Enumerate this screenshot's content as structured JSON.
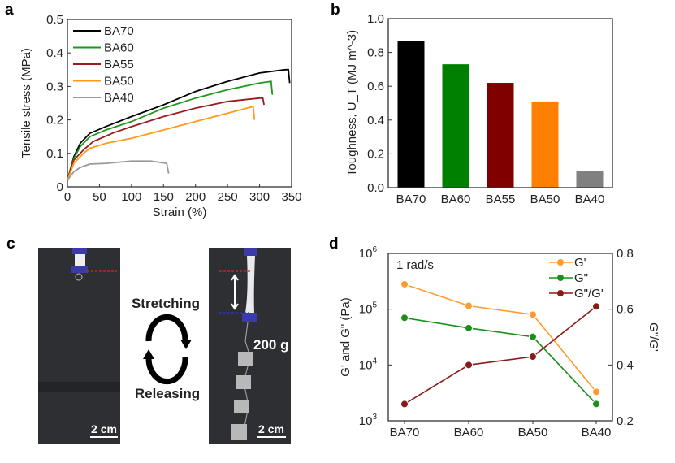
{
  "panel_labels": [
    "a",
    "b",
    "c",
    "d"
  ],
  "chart_data": [
    {
      "type": "line",
      "panel": "a",
      "xlabel": "Strain (%)",
      "ylabel": "Tensile stress (MPa)",
      "xlim": [
        0,
        350
      ],
      "ylim": [
        0,
        0.5
      ],
      "xticks": [
        "0",
        "50",
        "100",
        "150",
        "200",
        "250",
        "300",
        "350"
      ],
      "yticks": [
        "0",
        "0.1",
        "0.2",
        "0.3",
        "0.4",
        "0.5"
      ],
      "legend": "top-left",
      "series": [
        {
          "name": "BA70",
          "color": "#000000",
          "points": [
            [
              0,
              0.02
            ],
            [
              10,
              0.09
            ],
            [
              20,
              0.13
            ],
            [
              35,
              0.16
            ],
            [
              60,
              0.18
            ],
            [
              100,
              0.21
            ],
            [
              150,
              0.245
            ],
            [
              200,
              0.285
            ],
            [
              250,
              0.315
            ],
            [
              300,
              0.34
            ],
            [
              340,
              0.35
            ],
            [
              345,
              0.35
            ],
            [
              347,
              0.31
            ]
          ]
        },
        {
          "name": "BA60",
          "color": "#1a9a1a",
          "points": [
            [
              0,
              0.02
            ],
            [
              10,
              0.085
            ],
            [
              20,
              0.12
            ],
            [
              35,
              0.15
            ],
            [
              60,
              0.17
            ],
            [
              100,
              0.195
            ],
            [
              150,
              0.235
            ],
            [
              200,
              0.265
            ],
            [
              250,
              0.29
            ],
            [
              300,
              0.31
            ],
            [
              318,
              0.315
            ],
            [
              320,
              0.275
            ]
          ]
        },
        {
          "name": "BA55",
          "color": "#9b1c1c",
          "points": [
            [
              0,
              0.02
            ],
            [
              10,
              0.08
            ],
            [
              25,
              0.11
            ],
            [
              40,
              0.135
            ],
            [
              70,
              0.16
            ],
            [
              100,
              0.18
            ],
            [
              150,
              0.21
            ],
            [
              200,
              0.235
            ],
            [
              250,
              0.255
            ],
            [
              300,
              0.265
            ],
            [
              305,
              0.265
            ],
            [
              307,
              0.245
            ]
          ]
        },
        {
          "name": "BA50",
          "color": "#ff9a1a",
          "points": [
            [
              0,
              0.02
            ],
            [
              10,
              0.07
            ],
            [
              25,
              0.1
            ],
            [
              35,
              0.115
            ],
            [
              60,
              0.13
            ],
            [
              100,
              0.145
            ],
            [
              150,
              0.17
            ],
            [
              200,
              0.195
            ],
            [
              250,
              0.22
            ],
            [
              290,
              0.24
            ],
            [
              292,
              0.2
            ]
          ]
        },
        {
          "name": "BA40",
          "color": "#999999",
          "points": [
            [
              0,
              0.02
            ],
            [
              10,
              0.045
            ],
            [
              20,
              0.058
            ],
            [
              35,
              0.068
            ],
            [
              60,
              0.07
            ],
            [
              100,
              0.077
            ],
            [
              130,
              0.077
            ],
            [
              155,
              0.07
            ],
            [
              158,
              0.04
            ]
          ]
        }
      ]
    },
    {
      "type": "bar",
      "panel": "b",
      "ylabel": "Toughness, U_T (MJ m^-3)",
      "ylabel_parts": [
        "Toughness, ",
        "U",
        "T",
        " (MJ m",
        "-3",
        ")"
      ],
      "categories": [
        "BA70",
        "BA60",
        "BA55",
        "BA50",
        "BA40"
      ],
      "values": [
        0.87,
        0.73,
        0.62,
        0.51,
        0.1
      ],
      "colors": [
        "#000000",
        "#008000",
        "#800000",
        "#ff8000",
        "#808080"
      ],
      "ylim": [
        0,
        1.0
      ],
      "yticks": [
        "0.0",
        "0.2",
        "0.4",
        "0.6",
        "0.8",
        "1.0"
      ]
    },
    {
      "type": "line",
      "panel": "d",
      "annotation": "1 rad/s",
      "ylabel": "G' and G\" (Pa)",
      "y2label": "G\"/G'",
      "categories": [
        "BA70",
        "BA60",
        "BA50",
        "BA40"
      ],
      "ylim_log10": [
        3,
        6
      ],
      "yticks": [
        "10",
        "10",
        "10",
        "10"
      ],
      "ytick_exp": [
        "3",
        "4",
        "5",
        "6"
      ],
      "y2lim": [
        0.2,
        0.8
      ],
      "y2ticks": [
        "0.2",
        "0.4",
        "0.6",
        "0.8"
      ],
      "legend": "top-right",
      "series": [
        {
          "name": "G'",
          "axis": "left",
          "color": "#ff9a2e",
          "values": [
            280000,
            115000,
            80000,
            3300
          ]
        },
        {
          "name": "G\"",
          "axis": "left",
          "color": "#1a8f1a",
          "values": [
            70000,
            46000,
            32000,
            2000
          ]
        },
        {
          "name": "G\"/G'",
          "axis": "right",
          "color": "#8b1a1a",
          "values": [
            0.26,
            0.4,
            0.43,
            0.61
          ]
        }
      ]
    }
  ],
  "photo": {
    "stretching": "Stretching",
    "releasing": "Releasing",
    "weight": "200 g",
    "scale_left": "2 cm",
    "scale_right": "2 cm"
  }
}
